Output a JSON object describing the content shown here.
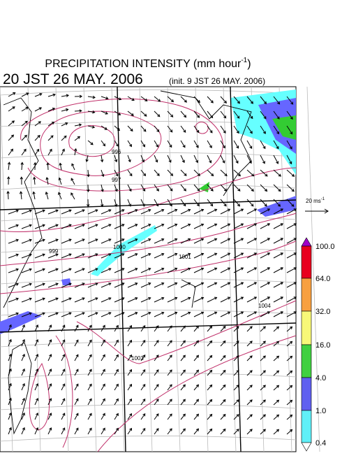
{
  "header": {
    "title_main": "PRECIPITATION INTENSITY (mm hour",
    "title_sup": "-1",
    "title_close": ")",
    "valid_time": "20 JST 26 MAY. 2006",
    "init_time": "(init. 9 JST 26 MAY. 2006)"
  },
  "map": {
    "contour_labels": [
      "996",
      "997",
      "999",
      "1000",
      "1001",
      "1003",
      "1004"
    ]
  },
  "wind_scale": {
    "label": "20 ms",
    "label_sup": "-1"
  },
  "colorbar": {
    "labels": [
      "100.0",
      "64.0",
      "32.0",
      "16.0",
      "4.0",
      "1.0",
      "0.4"
    ]
  }
}
